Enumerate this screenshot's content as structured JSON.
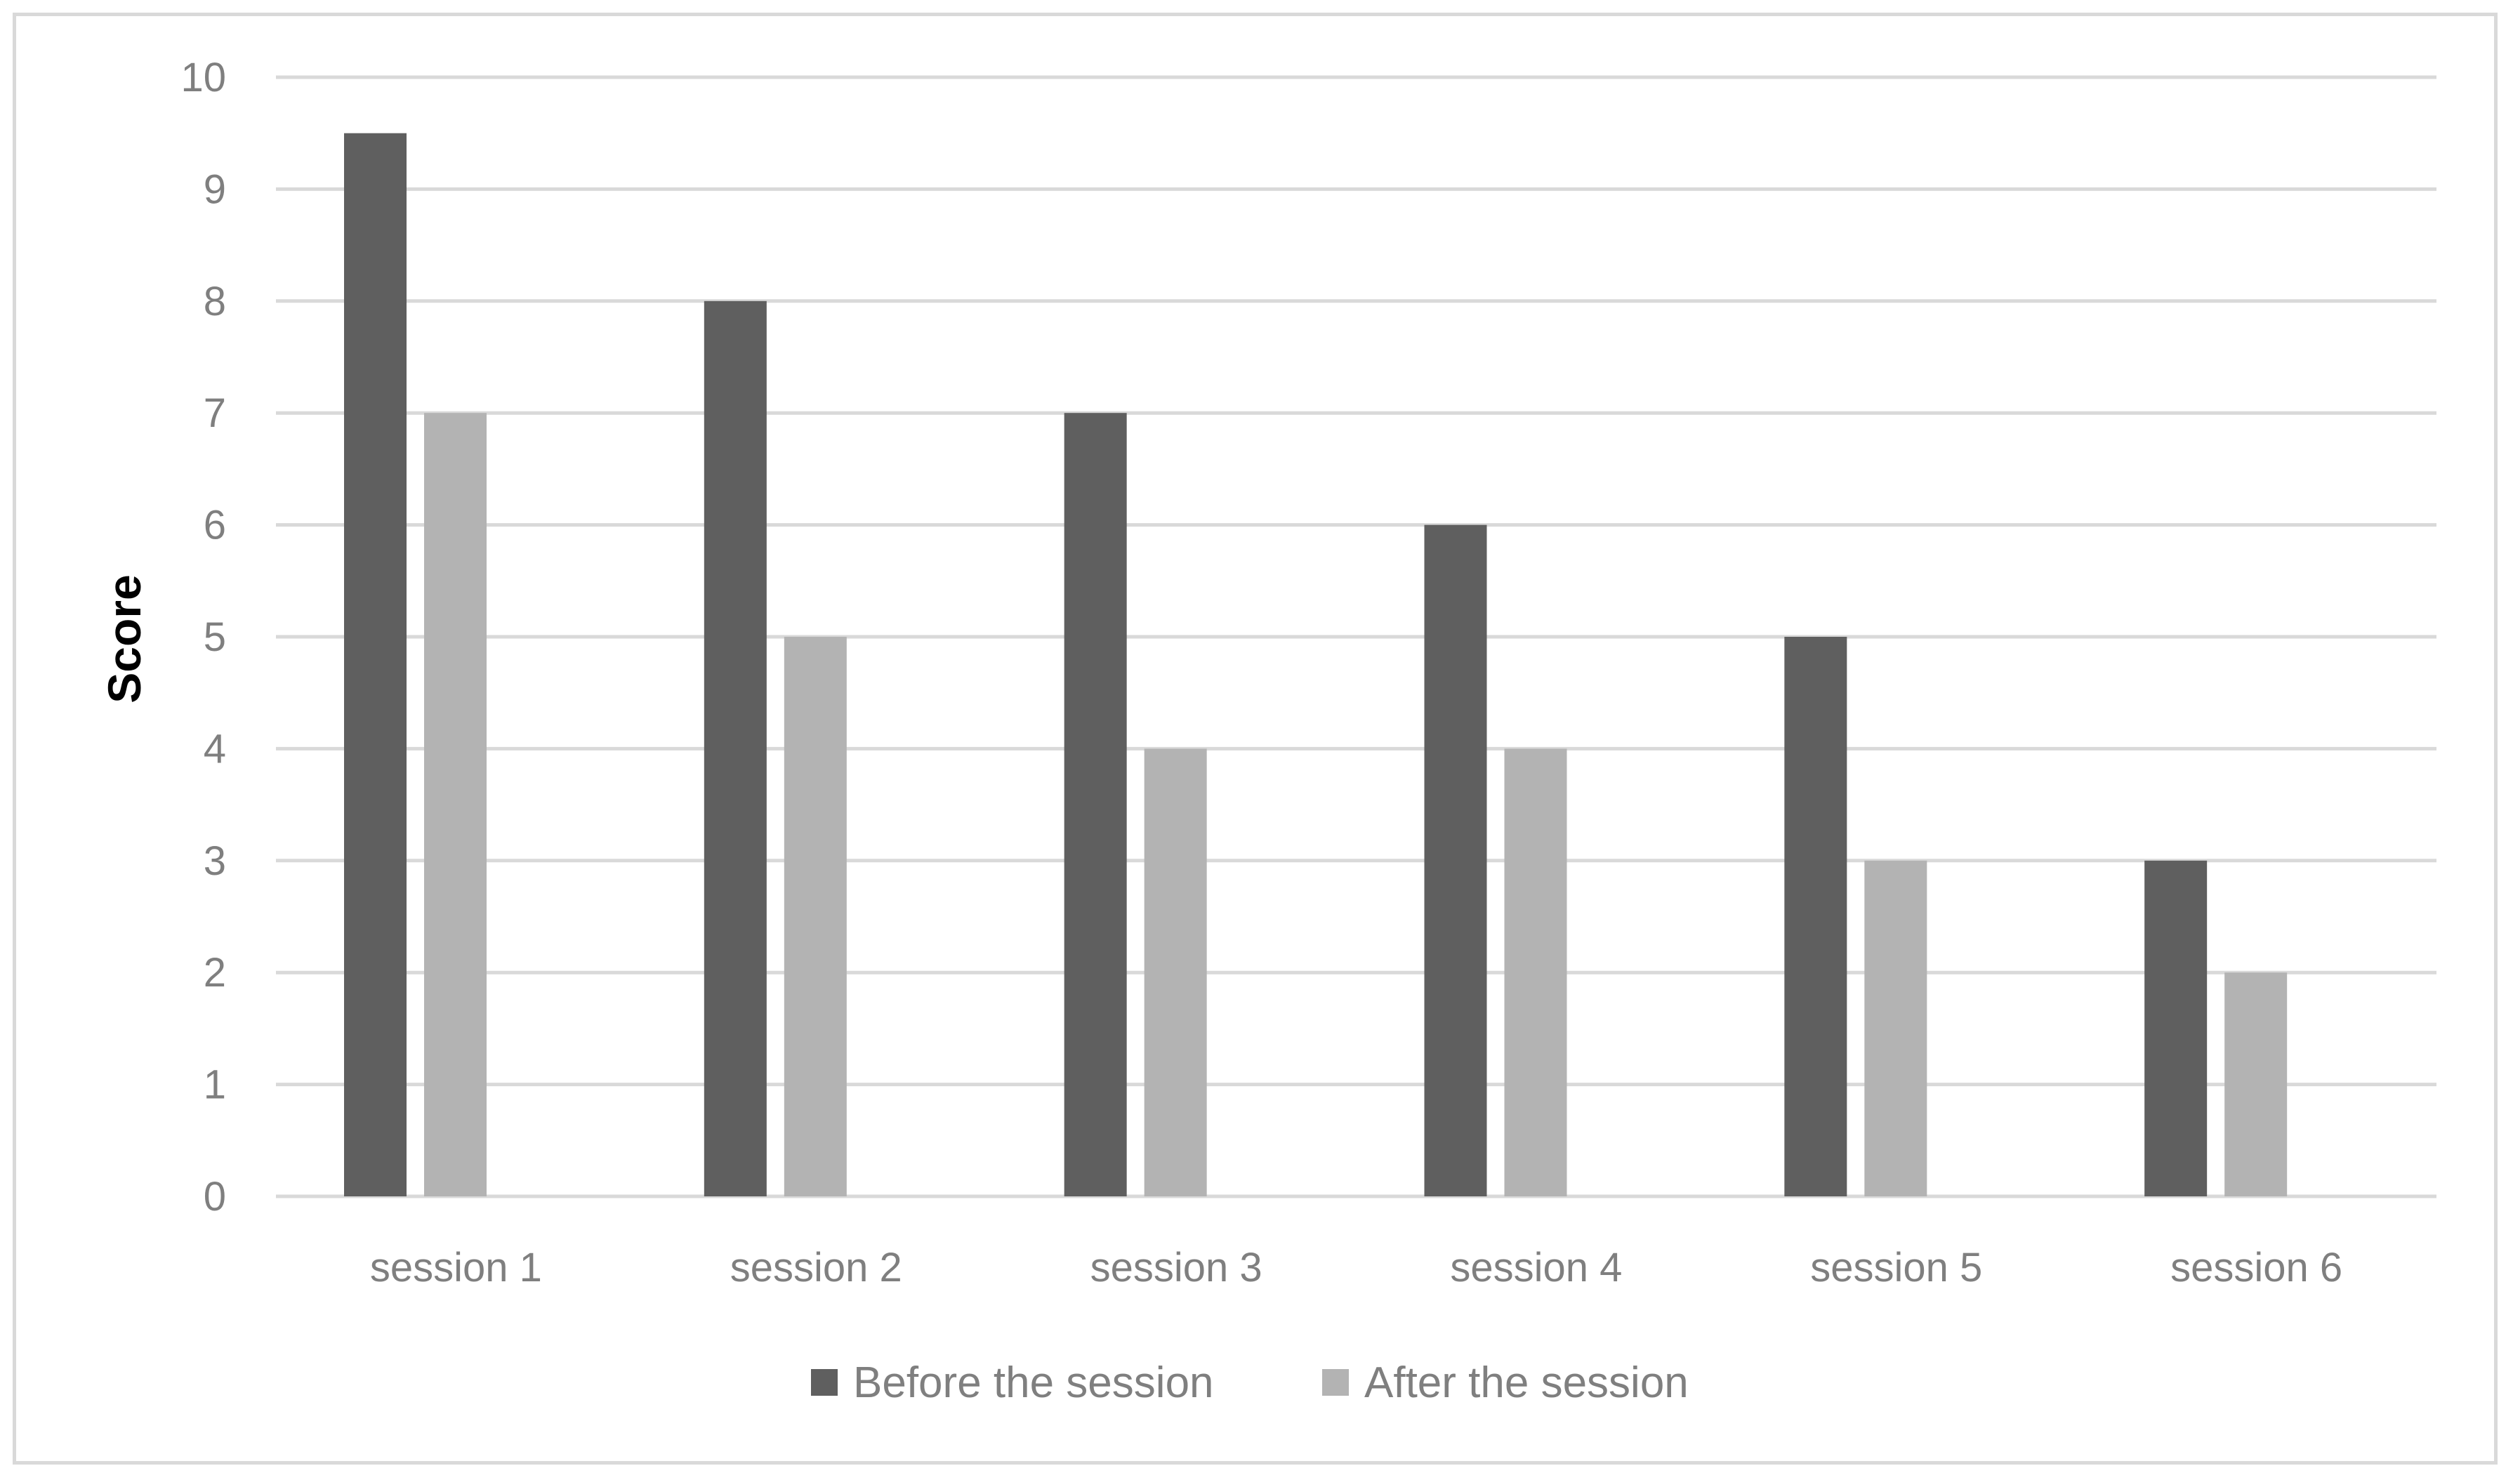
{
  "chart_data": {
    "type": "bar",
    "categories": [
      "session 1",
      "session 2",
      "session 3",
      "session 4",
      "session 5",
      "session 6"
    ],
    "series": [
      {
        "name": "Before the session",
        "values": [
          9.5,
          8,
          7,
          6,
          5,
          3
        ],
        "color": "#5f5f5f"
      },
      {
        "name": "After the session",
        "values": [
          7,
          5,
          4,
          4,
          3,
          2
        ],
        "color": "#b3b3b3"
      }
    ],
    "title": "",
    "xlabel": "",
    "ylabel": "Score",
    "ylim": [
      0,
      10
    ],
    "yticks": [
      "0",
      "1",
      "2",
      "3",
      "4",
      "5",
      "6",
      "7",
      "8",
      "9",
      "10"
    ],
    "grid": true,
    "legend_position": "bottom",
    "gridline_color": "#d9d9d9",
    "tick_label_color": "#7f7f7f"
  }
}
